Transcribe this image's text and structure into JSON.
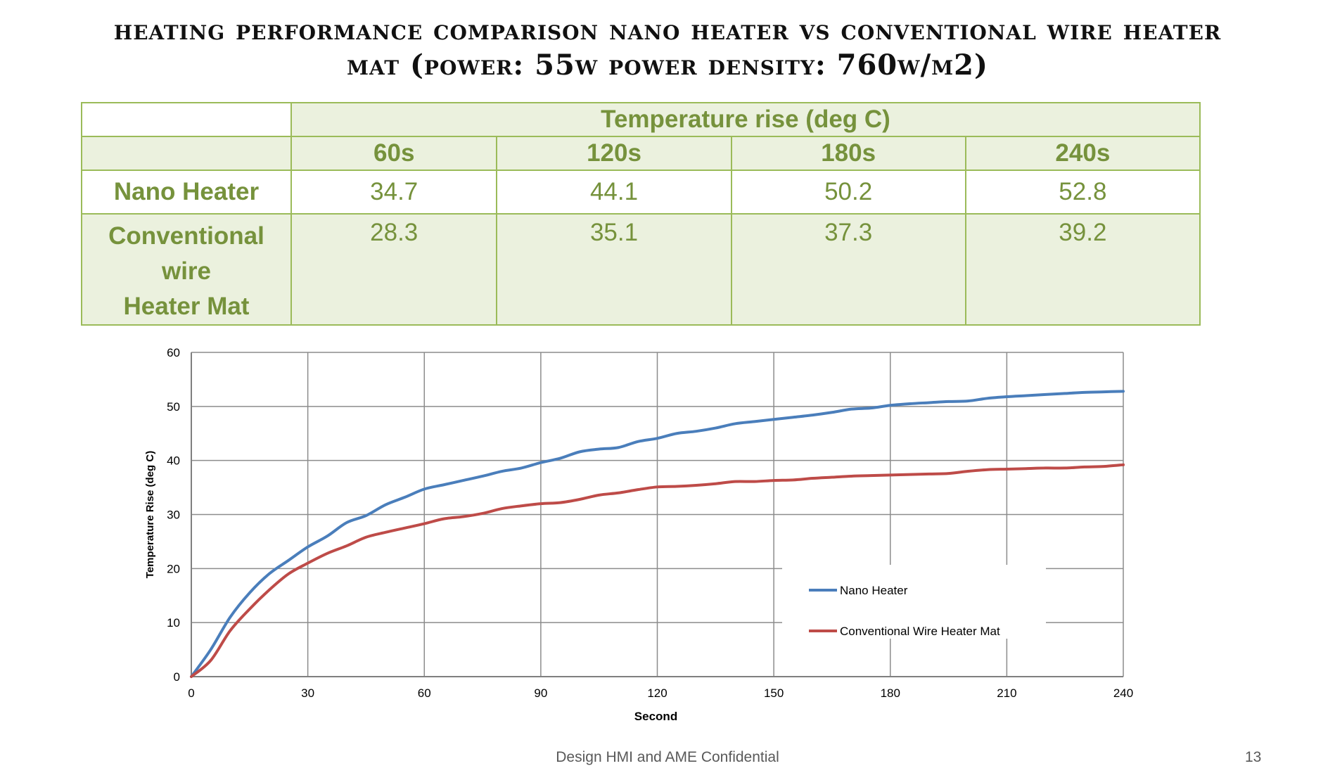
{
  "title": {
    "line1": "Heating Performance Comparison  Nano Heater vs Conventional Wire Heater",
    "line2": "Mat  (Power: 55W    Power density: 760W/m2)"
  },
  "table": {
    "group_header": "Temperature rise (deg C)",
    "columns": [
      "60s",
      "120s",
      "180s",
      "240s"
    ],
    "rows": [
      {
        "label": "Nano Heater",
        "values": [
          "34.7",
          "44.1",
          "50.2",
          "52.8"
        ]
      },
      {
        "label_lines": [
          "Conventional",
          "wire",
          "Heater Mat"
        ],
        "values": [
          "28.3",
          "35.1",
          "37.3",
          "39.2"
        ]
      }
    ]
  },
  "chart_data": {
    "type": "line",
    "title": "",
    "xlabel": "Second",
    "ylabel": "Temperature Rise (deg C)",
    "xlim": [
      0,
      240
    ],
    "ylim": [
      0,
      60
    ],
    "xticks": [
      0,
      30,
      60,
      90,
      120,
      150,
      180,
      210,
      240
    ],
    "yticks": [
      0,
      10,
      20,
      30,
      40,
      50,
      60
    ],
    "grid": true,
    "legend_position": "inside-bottom-right",
    "series": [
      {
        "name": "Nano Heater",
        "color": "#4a7ebb",
        "x": [
          0,
          5,
          10,
          15,
          20,
          25,
          30,
          35,
          40,
          45,
          50,
          55,
          60,
          65,
          70,
          75,
          80,
          85,
          90,
          95,
          100,
          105,
          110,
          115,
          120,
          125,
          130,
          135,
          140,
          145,
          150,
          155,
          160,
          165,
          170,
          175,
          180,
          185,
          190,
          195,
          200,
          205,
          210,
          215,
          220,
          225,
          230,
          235,
          240
        ],
        "y": [
          0,
          5,
          11,
          15.5,
          19,
          21.5,
          24,
          26,
          28.5,
          29.8,
          31.8,
          33.2,
          34.7,
          35.5,
          36.3,
          37.1,
          38,
          38.6,
          39.6,
          40.4,
          41.6,
          42.1,
          42.4,
          43.5,
          44.1,
          45,
          45.4,
          46,
          46.8,
          47.2,
          47.6,
          48,
          48.4,
          48.9,
          49.5,
          49.7,
          50.2,
          50.5,
          50.7,
          50.9,
          51,
          51.5,
          51.8,
          52,
          52.2,
          52.4,
          52.6,
          52.7,
          52.8
        ]
      },
      {
        "name": "Conventional Wire Heater Mat",
        "color": "#be4b48",
        "x": [
          0,
          5,
          10,
          15,
          20,
          25,
          30,
          35,
          40,
          45,
          50,
          55,
          60,
          65,
          70,
          75,
          80,
          85,
          90,
          95,
          100,
          105,
          110,
          115,
          120,
          125,
          130,
          135,
          140,
          145,
          150,
          155,
          160,
          165,
          170,
          175,
          180,
          185,
          190,
          195,
          200,
          205,
          210,
          215,
          220,
          225,
          230,
          235,
          240
        ],
        "y": [
          0,
          3,
          8.5,
          12.5,
          16,
          19,
          21,
          22.8,
          24.2,
          25.8,
          26.7,
          27.5,
          28.3,
          29.2,
          29.6,
          30.2,
          31.1,
          31.6,
          32,
          32.2,
          32.8,
          33.6,
          34,
          34.6,
          35.1,
          35.2,
          35.4,
          35.7,
          36.1,
          36.1,
          36.3,
          36.4,
          36.7,
          36.9,
          37.1,
          37.2,
          37.3,
          37.4,
          37.5,
          37.6,
          38,
          38.3,
          38.4,
          38.5,
          38.6,
          38.6,
          38.8,
          38.9,
          39.2
        ]
      }
    ]
  },
  "footer": {
    "text": "Design HMI and AME Confidential",
    "page": "13"
  }
}
